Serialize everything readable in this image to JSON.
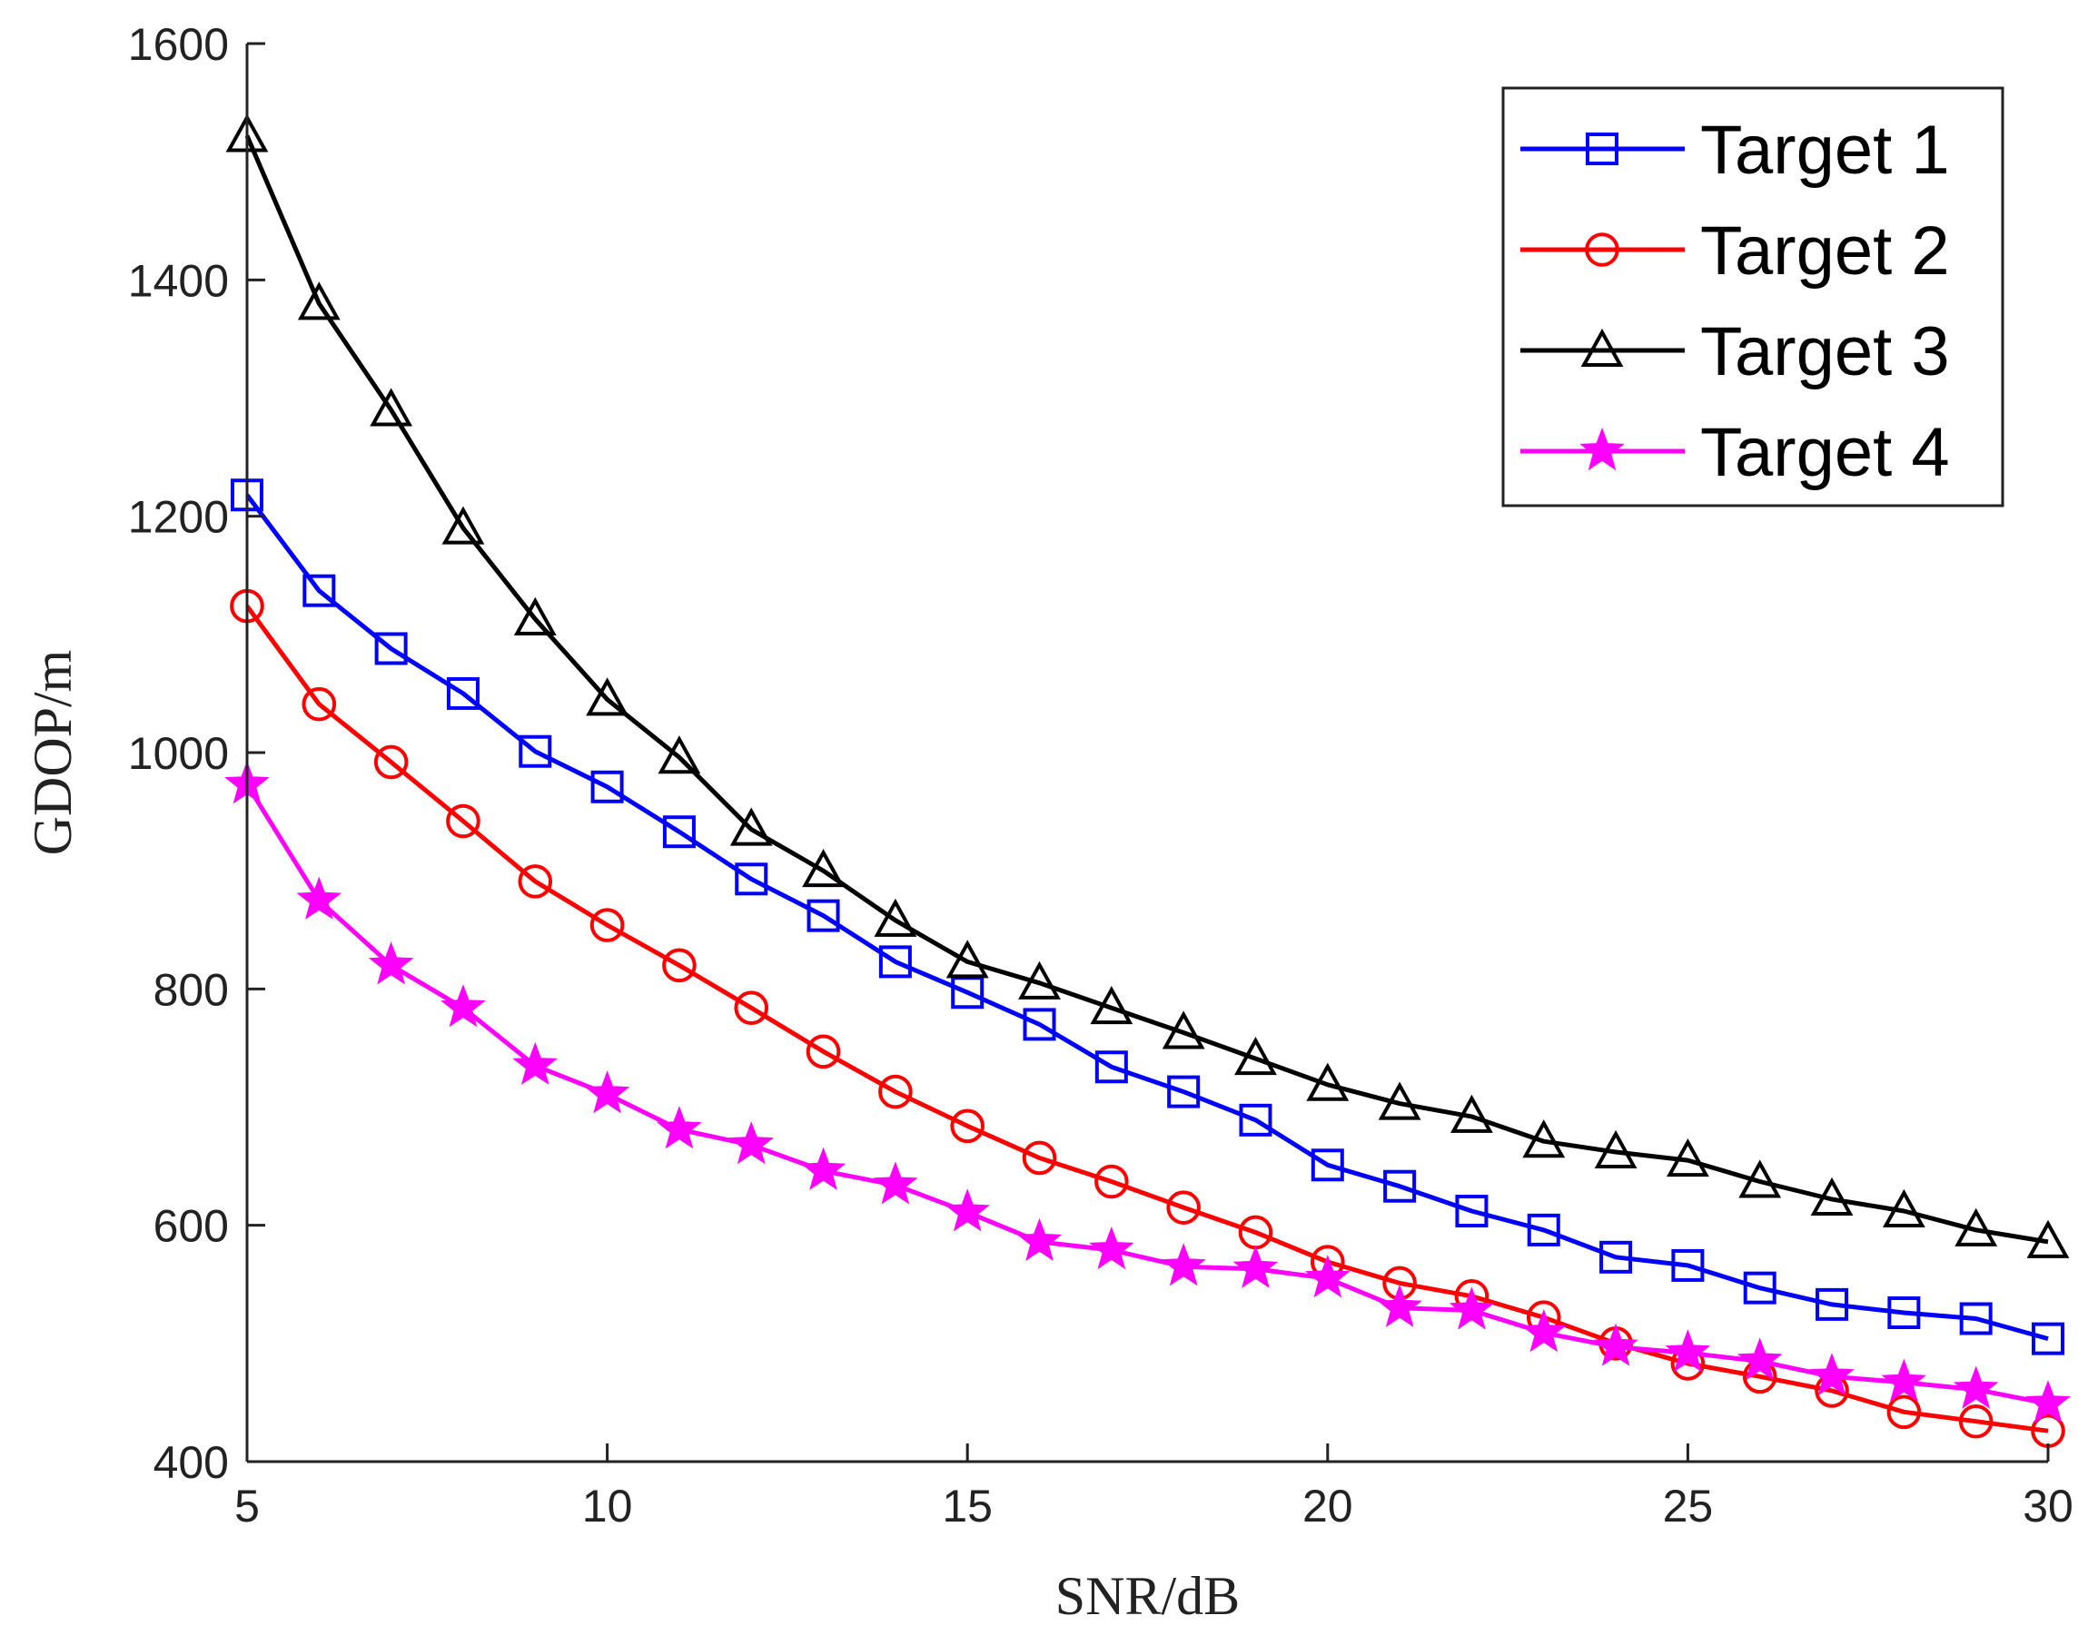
{
  "chart_data": {
    "type": "line",
    "title": "",
    "xlabel": "SNR/dB",
    "ylabel": "GDOP/m",
    "xlim": [
      5,
      30
    ],
    "ylim": [
      400,
      1600
    ],
    "xticks": [
      5,
      10,
      15,
      20,
      25,
      30
    ],
    "yticks": [
      400,
      600,
      800,
      1000,
      1200,
      1400,
      1600
    ],
    "grid": false,
    "legend_position": "top-right",
    "x": [
      5,
      6,
      7,
      8,
      9,
      10,
      11,
      12,
      13,
      14,
      15,
      16,
      17,
      18,
      19,
      20,
      21,
      22,
      23,
      24,
      25,
      26,
      27,
      28,
      29,
      30
    ],
    "series": [
      {
        "name": "Target 1",
        "color": "#0000ff",
        "marker": "square",
        "values": [
          1218,
          1137,
          1088,
          1050,
          1001,
          971,
          933,
          893,
          862,
          823,
          797,
          770,
          734,
          713,
          689,
          651,
          633,
          612,
          596,
          573,
          566,
          547,
          533,
          526,
          521,
          504
        ]
      },
      {
        "name": "Target 2",
        "color": "#ff0000",
        "marker": "circle",
        "values": [
          1124,
          1041,
          992,
          942,
          891,
          854,
          820,
          784,
          747,
          713,
          684,
          657,
          637,
          615,
          594,
          569,
          551,
          540,
          522,
          500,
          483,
          472,
          460,
          442,
          434,
          426
        ]
      },
      {
        "name": "Target 3",
        "color": "#000000",
        "marker": "triangle",
        "values": [
          1522,
          1380,
          1290,
          1190,
          1113,
          1045,
          996,
          935,
          900,
          858,
          823,
          805,
          784,
          763,
          741,
          719,
          703,
          692,
          671,
          662,
          655,
          637,
          622,
          612,
          596,
          586
        ]
      },
      {
        "name": "Target 4",
        "color": "#ff00ff",
        "marker": "star",
        "values": [
          973,
          875,
          820,
          784,
          735,
          711,
          681,
          668,
          646,
          634,
          611,
          586,
          579,
          565,
          563,
          555,
          530,
          528,
          509,
          497,
          492,
          485,
          472,
          467,
          461,
          449
        ]
      }
    ]
  }
}
